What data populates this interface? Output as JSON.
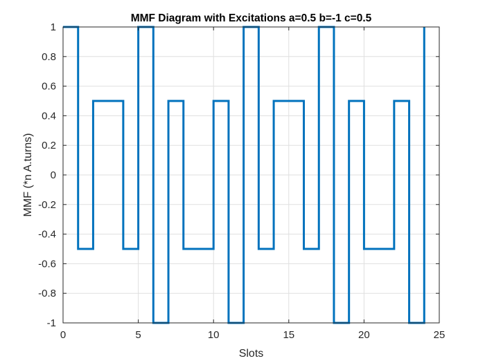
{
  "chart_data": {
    "type": "line",
    "title": "MMF Diagram with Excitations a=0.5 b=-1 c=0.5",
    "xlabel": "Slots",
    "ylabel": "MMF (*n A.turns)",
    "xlim": [
      0,
      25
    ],
    "ylim": [
      -1,
      1
    ],
    "xticks": [
      0,
      5,
      10,
      15,
      20,
      25
    ],
    "yticks": [
      1,
      0.8,
      0.6,
      0.4,
      0.2,
      0,
      -0.2,
      -0.4,
      -0.6,
      -0.8,
      -1
    ],
    "xtick_labels": [
      "0",
      "5",
      "10",
      "15",
      "20",
      "25"
    ],
    "ytick_labels": [
      "1",
      "0.8",
      "0.6",
      "0.4",
      "0.2",
      "0",
      "-0.2",
      "-0.4",
      "-0.6",
      "-0.8",
      "-1"
    ],
    "grid": true,
    "step": "post",
    "series": [
      {
        "color": "#0072BD",
        "x": [
          0,
          1,
          2,
          3,
          4,
          5,
          6,
          7,
          8,
          9,
          10,
          11,
          12,
          13,
          14,
          15,
          16,
          17,
          18,
          19,
          20,
          21,
          22,
          23,
          24
        ],
        "y": [
          1,
          -0.5,
          0.5,
          0.5,
          -0.5,
          1,
          -1,
          0.5,
          -0.5,
          -0.5,
          0.5,
          -1,
          1,
          -0.5,
          0.5,
          0.5,
          -0.5,
          1,
          -1,
          0.5,
          -0.5,
          -0.5,
          0.5,
          -1,
          1
        ]
      }
    ]
  }
}
